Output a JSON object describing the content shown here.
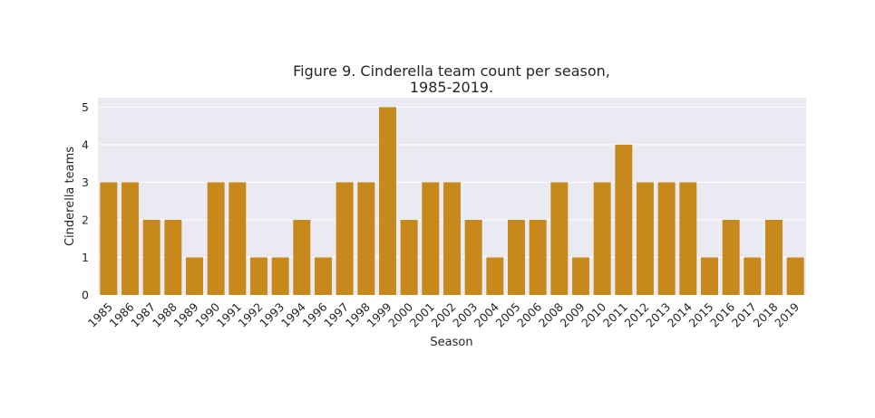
{
  "chart_data": {
    "type": "bar",
    "title_lines": [
      "Figure 9. Cinderella team count per season,",
      "1985-2019."
    ],
    "xlabel": "Season",
    "ylabel": "Cinderella teams",
    "categories": [
      "1985",
      "1986",
      "1987",
      "1988",
      "1989",
      "1990",
      "1991",
      "1992",
      "1993",
      "1994",
      "1996",
      "1997",
      "1998",
      "1999",
      "2000",
      "2001",
      "2002",
      "2003",
      "2004",
      "2005",
      "2006",
      "2008",
      "2009",
      "2010",
      "2011",
      "2012",
      "2013",
      "2014",
      "2015",
      "2016",
      "2017",
      "2018",
      "2019"
    ],
    "values": [
      3,
      3,
      2,
      2,
      1,
      3,
      3,
      1,
      1,
      2,
      1,
      3,
      3,
      5,
      2,
      3,
      3,
      2,
      1,
      2,
      2,
      3,
      1,
      3,
      4,
      3,
      3,
      3,
      1,
      2,
      1,
      2,
      1
    ],
    "yticks": [
      "0",
      "1",
      "2",
      "3",
      "4",
      "5"
    ],
    "ylim": [
      0,
      5.25
    ],
    "grid": true,
    "colors": {
      "bar": "#c8891c",
      "plot_background": "#eaeaf2",
      "grid": "#ffffff"
    }
  }
}
